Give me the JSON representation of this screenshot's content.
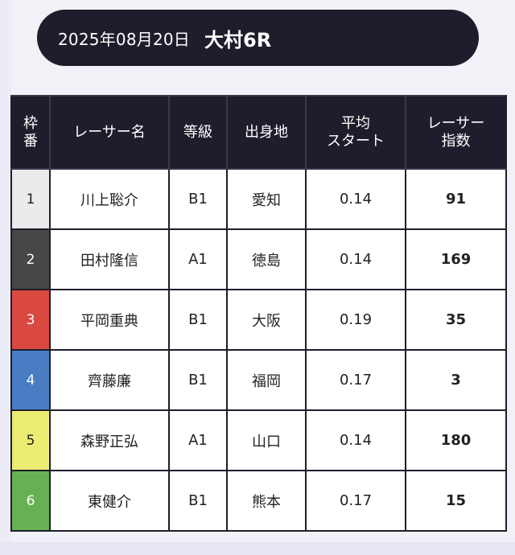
{
  "header": {
    "date": "2025年08月20日",
    "race": "大村6R"
  },
  "columns": {
    "waku": [
      "枠",
      "番"
    ],
    "name": [
      "レーサー名"
    ],
    "grade": [
      "等級"
    ],
    "origin": [
      "出身地"
    ],
    "avg_start": [
      "平均",
      "スタート"
    ],
    "index": [
      "レーサー",
      "指数"
    ]
  },
  "colors": {
    "header_bg": "#1f1d2b",
    "waku": [
      "#ebebeb",
      "#474747",
      "#d9493f",
      "#4a7cc4",
      "#ecec72",
      "#67b154"
    ],
    "waku_text": [
      "#222222",
      "#ffffff",
      "#ffffff",
      "#ffffff",
      "#222222",
      "#ffffff"
    ]
  },
  "rows": [
    {
      "waku": "1",
      "name": "川上聡介",
      "grade": "B1",
      "origin": "愛知",
      "avg_start": "0.14",
      "index": "91"
    },
    {
      "waku": "2",
      "name": "田村隆信",
      "grade": "A1",
      "origin": "徳島",
      "avg_start": "0.14",
      "index": "169"
    },
    {
      "waku": "3",
      "name": "平岡重典",
      "grade": "B1",
      "origin": "大阪",
      "avg_start": "0.19",
      "index": "35"
    },
    {
      "waku": "4",
      "name": "齊藤廉",
      "grade": "B1",
      "origin": "福岡",
      "avg_start": "0.17",
      "index": "3"
    },
    {
      "waku": "5",
      "name": "森野正弘",
      "grade": "A1",
      "origin": "山口",
      "avg_start": "0.14",
      "index": "180"
    },
    {
      "waku": "6",
      "name": "東健介",
      "grade": "B1",
      "origin": "熊本",
      "avg_start": "0.17",
      "index": "15"
    }
  ]
}
